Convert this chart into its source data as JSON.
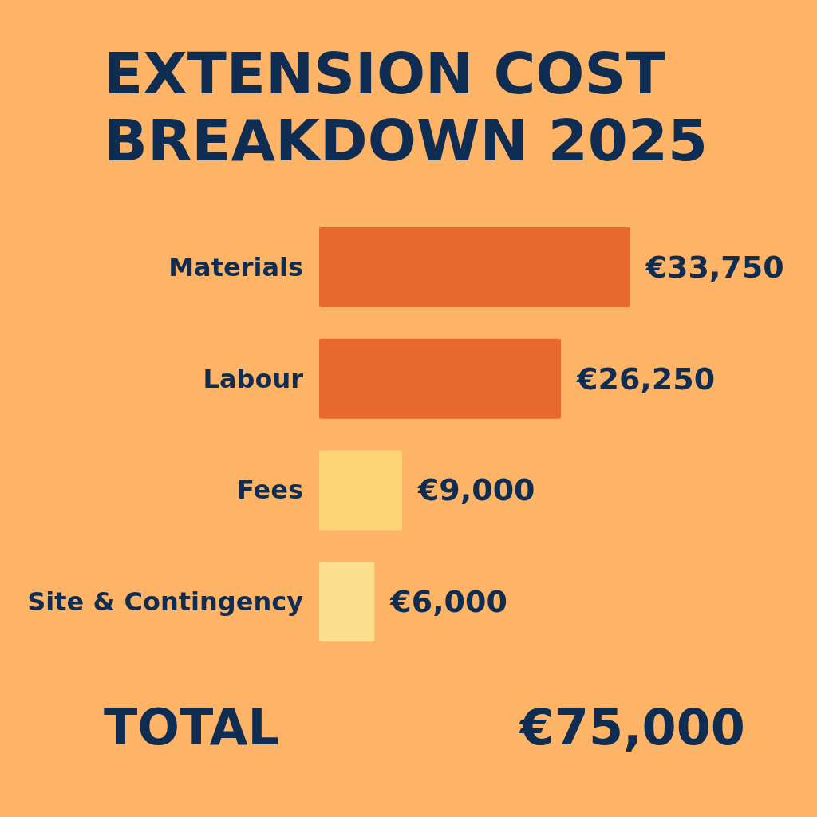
{
  "chart_data": {
    "type": "bar",
    "orientation": "horizontal",
    "title": "EXTENSION COST BREAKDOWN 2025",
    "categories": [
      "Materials",
      "Labour",
      "Fees",
      "Site & Contingency"
    ],
    "values": [
      33750,
      26250,
      9000,
      6000
    ],
    "colors": [
      "#e8682e",
      "#e8682e",
      "#fdd576",
      "#fde08f"
    ],
    "value_labels": [
      "€33,750",
      "€26,250",
      "€9,000",
      "€6,000"
    ],
    "annotations": [
      "TOTAL",
      "€75,000"
    ]
  }
}
